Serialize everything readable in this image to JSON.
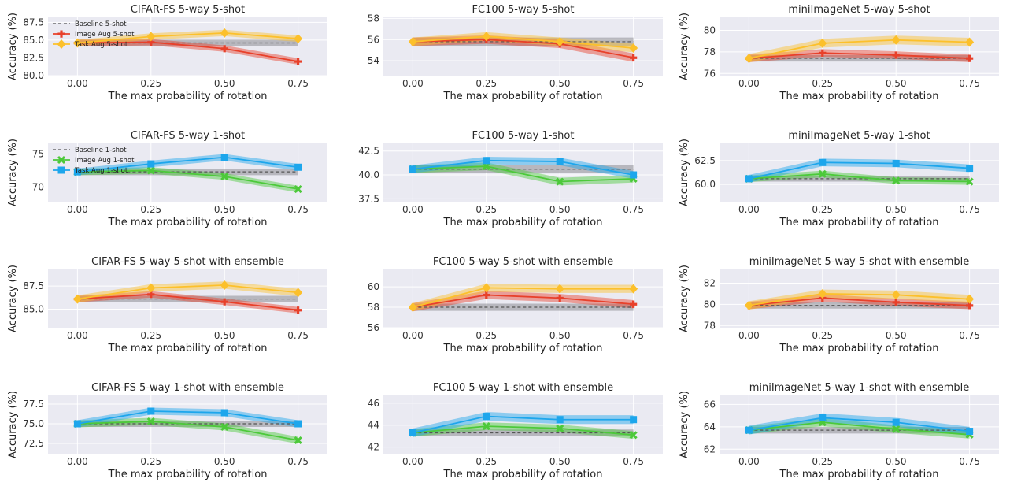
{
  "colors": {
    "background": "#eaeaf2",
    "grid": "#ffffff",
    "baseline": "#555555",
    "baseline_band": "#8c8c94",
    "image_aug": "#e8402a",
    "task_aug_5shot": "#fcc02b",
    "image_aug_1shot": "#4cc93a",
    "task_aug_1shot": "#1da6ec"
  },
  "chart_data": [
    {
      "type": "line",
      "title": "CIFAR-FS 5-way 5-shot",
      "shot": 5,
      "xlabel": "The max probability of rotation",
      "ylabel": "Accuracy (%)",
      "x": [
        0.0,
        0.25,
        0.5,
        0.75
      ],
      "xticks": [
        "0.00",
        "0.25",
        "0.50",
        "0.75"
      ],
      "ylim": [
        80.0,
        88.2
      ],
      "yticks": [
        80.0,
        82.5,
        85.0,
        87.5
      ],
      "ytick_labels": [
        "80.0",
        "82.5",
        "85.0",
        "87.5"
      ],
      "legend": {
        "location": "upper-left",
        "entries": [
          "Baseline 5-shot",
          "Image Aug 5-shot",
          "Task Aug 5-shot"
        ]
      },
      "series": [
        {
          "name": "Baseline 5-shot",
          "role": "baseline",
          "values": [
            84.6,
            84.6,
            84.6,
            84.6
          ],
          "band": 0.45
        },
        {
          "name": "Image Aug 5-shot",
          "role": "image",
          "values": [
            84.6,
            84.7,
            83.8,
            82.0
          ],
          "band": 0.45
        },
        {
          "name": "Task Aug 5-shot",
          "role": "task",
          "values": [
            84.6,
            85.5,
            86.0,
            85.2
          ],
          "band": 0.45
        }
      ]
    },
    {
      "type": "line",
      "title": "FC100 5-way 5-shot",
      "shot": 5,
      "xlabel": "The max probability of rotation",
      "ylabel": "",
      "x": [
        0.0,
        0.25,
        0.5,
        0.75
      ],
      "xticks": [
        "0.00",
        "0.25",
        "0.50",
        "0.75"
      ],
      "ylim": [
        52.6,
        58.1
      ],
      "yticks": [
        54,
        56,
        58
      ],
      "ytick_labels": [
        "54",
        "56",
        "58"
      ],
      "series": [
        {
          "name": "Baseline 5-shot",
          "role": "baseline",
          "values": [
            55.8,
            55.8,
            55.8,
            55.8
          ],
          "band": 0.4
        },
        {
          "name": "Image Aug 5-shot",
          "role": "image",
          "values": [
            55.8,
            56.0,
            55.6,
            54.3
          ],
          "band": 0.4
        },
        {
          "name": "Task Aug 5-shot",
          "role": "task",
          "values": [
            55.8,
            56.3,
            55.8,
            55.2
          ],
          "band": 0.4
        }
      ]
    },
    {
      "type": "line",
      "title": "miniImageNet 5-way 5-shot",
      "shot": 5,
      "xlabel": "The max probability of rotation",
      "ylabel": "Accuracy (%)",
      "x": [
        0.0,
        0.25,
        0.5,
        0.75
      ],
      "xticks": [
        "0.00",
        "0.25",
        "0.50",
        "0.75"
      ],
      "ylim": [
        75.8,
        81.2
      ],
      "yticks": [
        76,
        78,
        80
      ],
      "ytick_labels": [
        "76",
        "78",
        "80"
      ],
      "series": [
        {
          "name": "Baseline 5-shot",
          "role": "baseline",
          "values": [
            77.4,
            77.4,
            77.4,
            77.4
          ],
          "band": 0.3
        },
        {
          "name": "Image Aug 5-shot",
          "role": "image",
          "values": [
            77.4,
            77.9,
            77.7,
            77.4
          ],
          "band": 0.35
        },
        {
          "name": "Task Aug 5-shot",
          "role": "task",
          "values": [
            77.4,
            78.8,
            79.1,
            78.9
          ],
          "band": 0.4
        }
      ]
    },
    {
      "type": "line",
      "title": "CIFAR-FS 5-way 1-shot",
      "shot": 1,
      "xlabel": "The max probability of rotation",
      "ylabel": "Accuracy (%)",
      "x": [
        0.0,
        0.25,
        0.5,
        0.75
      ],
      "xticks": [
        "0.00",
        "0.25",
        "0.50",
        "0.75"
      ],
      "ylim": [
        67.8,
        76.6
      ],
      "yticks": [
        70,
        75
      ],
      "ytick_labels": [
        "70",
        "75"
      ],
      "legend": {
        "location": "upper-left",
        "entries": [
          "Baseline 1-shot",
          "Image Aug 1-shot",
          "Task Aug 1-shot"
        ]
      },
      "series": [
        {
          "name": "Baseline 1-shot",
          "role": "baseline",
          "values": [
            72.3,
            72.3,
            72.3,
            72.3
          ],
          "band": 0.5
        },
        {
          "name": "Image Aug 1-shot",
          "role": "image",
          "values": [
            72.3,
            72.5,
            71.6,
            69.7
          ],
          "band": 0.5
        },
        {
          "name": "Task Aug 1-shot",
          "role": "task",
          "values": [
            72.3,
            73.5,
            74.5,
            73.0
          ],
          "band": 0.5
        }
      ]
    },
    {
      "type": "line",
      "title": "FC100 5-way 1-shot",
      "shot": 1,
      "xlabel": "The max probability of rotation",
      "ylabel": "",
      "x": [
        0.0,
        0.25,
        0.5,
        0.75
      ],
      "xticks": [
        "0.00",
        "0.25",
        "0.50",
        "0.75"
      ],
      "ylim": [
        37.2,
        43.3
      ],
      "yticks": [
        37.5,
        40.0,
        42.5
      ],
      "ytick_labels": [
        "37.5",
        "40.0",
        "42.5"
      ],
      "series": [
        {
          "name": "Baseline 1-shot",
          "role": "baseline",
          "values": [
            40.6,
            40.6,
            40.6,
            40.6
          ],
          "band": 0.4
        },
        {
          "name": "Image Aug 1-shot",
          "role": "image",
          "values": [
            40.6,
            40.9,
            39.3,
            39.6
          ],
          "band": 0.4
        },
        {
          "name": "Task Aug 1-shot",
          "role": "task",
          "values": [
            40.6,
            41.5,
            41.4,
            40.0
          ],
          "band": 0.4
        }
      ]
    },
    {
      "type": "line",
      "title": "miniImageNet 5-way 1-shot",
      "shot": 1,
      "xlabel": "The max probability of rotation",
      "ylabel": "Accuracy (%)",
      "x": [
        0.0,
        0.25,
        0.5,
        0.75
      ],
      "xticks": [
        "0.00",
        "0.25",
        "0.50",
        "0.75"
      ],
      "ylim": [
        58.2,
        64.3
      ],
      "yticks": [
        60.0,
        62.5
      ],
      "ytick_labels": [
        "60.0",
        "62.5"
      ],
      "series": [
        {
          "name": "Baseline 1-shot",
          "role": "baseline",
          "values": [
            60.6,
            60.6,
            60.6,
            60.6
          ],
          "band": 0.3
        },
        {
          "name": "Image Aug 1-shot",
          "role": "image",
          "values": [
            60.6,
            61.1,
            60.4,
            60.3
          ],
          "band": 0.35
        },
        {
          "name": "Task Aug 1-shot",
          "role": "task",
          "values": [
            60.6,
            62.3,
            62.2,
            61.7
          ],
          "band": 0.4
        }
      ]
    },
    {
      "type": "line",
      "title": "CIFAR-FS 5-way 5-shot with ensemble",
      "shot": 5,
      "xlabel": "The max probability of rotation",
      "ylabel": "Accuracy (%)",
      "x": [
        0.0,
        0.25,
        0.5,
        0.75
      ],
      "xticks": [
        "0.00",
        "0.25",
        "0.50",
        "0.75"
      ],
      "ylim": [
        83.0,
        89.3
      ],
      "yticks": [
        85.0,
        87.5
      ],
      "ytick_labels": [
        "85.0",
        "87.5"
      ],
      "series": [
        {
          "name": "Baseline 5-shot",
          "role": "baseline",
          "values": [
            86.1,
            86.1,
            86.1,
            86.1
          ],
          "band": 0.35
        },
        {
          "name": "Image Aug 5-shot",
          "role": "image",
          "values": [
            86.1,
            86.6,
            85.8,
            84.9
          ],
          "band": 0.35
        },
        {
          "name": "Task Aug 5-shot",
          "role": "task",
          "values": [
            86.1,
            87.3,
            87.6,
            86.8
          ],
          "band": 0.4
        }
      ]
    },
    {
      "type": "line",
      "title": "FC100 5-way 5-shot with ensemble",
      "shot": 5,
      "xlabel": "The max probability of rotation",
      "ylabel": "",
      "x": [
        0.0,
        0.25,
        0.5,
        0.75
      ],
      "xticks": [
        "0.00",
        "0.25",
        "0.50",
        "0.75"
      ],
      "ylim": [
        56.0,
        61.7
      ],
      "yticks": [
        56,
        58,
        60
      ],
      "ytick_labels": [
        "56",
        "58",
        "60"
      ],
      "series": [
        {
          "name": "Baseline 5-shot",
          "role": "baseline",
          "values": [
            58.0,
            58.0,
            58.0,
            58.0
          ],
          "band": 0.35
        },
        {
          "name": "Image Aug 5-shot",
          "role": "image",
          "values": [
            58.0,
            59.2,
            58.9,
            58.3
          ],
          "band": 0.4
        },
        {
          "name": "Task Aug 5-shot",
          "role": "task",
          "values": [
            58.0,
            59.9,
            59.8,
            59.8
          ],
          "band": 0.4
        }
      ]
    },
    {
      "type": "line",
      "title": "miniImageNet 5-way 5-shot with ensemble",
      "shot": 5,
      "xlabel": "The max probability of rotation",
      "ylabel": "Accuracy (%)",
      "x": [
        0.0,
        0.25,
        0.5,
        0.75
      ],
      "xticks": [
        "0.00",
        "0.25",
        "0.50",
        "0.75"
      ],
      "ylim": [
        77.8,
        83.3
      ],
      "yticks": [
        78,
        80,
        82
      ],
      "ytick_labels": [
        "78",
        "80",
        "82"
      ],
      "series": [
        {
          "name": "Baseline 5-shot",
          "role": "baseline",
          "values": [
            79.9,
            79.9,
            79.9,
            79.9
          ],
          "band": 0.3
        },
        {
          "name": "Image Aug 5-shot",
          "role": "image",
          "values": [
            79.9,
            80.6,
            80.2,
            79.9
          ],
          "band": 0.35
        },
        {
          "name": "Task Aug 5-shot",
          "role": "task",
          "values": [
            79.9,
            81.0,
            80.9,
            80.5
          ],
          "band": 0.4
        }
      ]
    },
    {
      "type": "line",
      "title": "CIFAR-FS 5-way 1-shot with ensemble",
      "shot": 1,
      "xlabel": "The max probability of rotation",
      "ylabel": "Accuracy (%)",
      "x": [
        0.0,
        0.25,
        0.5,
        0.75
      ],
      "xticks": [
        "0.00",
        "0.25",
        "0.50",
        "0.75"
      ],
      "ylim": [
        71.2,
        78.6
      ],
      "yticks": [
        72.5,
        75.0,
        77.5
      ],
      "ytick_labels": [
        "72.5",
        "75.0",
        "77.5"
      ],
      "series": [
        {
          "name": "Baseline 1-shot",
          "role": "baseline",
          "values": [
            75.0,
            75.0,
            75.0,
            75.0
          ],
          "band": 0.4
        },
        {
          "name": "Image Aug 1-shot",
          "role": "image",
          "values": [
            75.0,
            75.3,
            74.6,
            72.9
          ],
          "band": 0.45
        },
        {
          "name": "Task Aug 1-shot",
          "role": "task",
          "values": [
            75.0,
            76.6,
            76.4,
            75.0
          ],
          "band": 0.45
        }
      ]
    },
    {
      "type": "line",
      "title": "FC100 5-way 1-shot with ensemble",
      "shot": 1,
      "xlabel": "The max probability of rotation",
      "ylabel": "",
      "x": [
        0.0,
        0.25,
        0.5,
        0.75
      ],
      "xticks": [
        "0.00",
        "0.25",
        "0.50",
        "0.75"
      ],
      "ylim": [
        41.4,
        46.7
      ],
      "yticks": [
        42,
        44,
        46
      ],
      "ytick_labels": [
        "42",
        "44",
        "46"
      ],
      "series": [
        {
          "name": "Baseline 1-shot",
          "role": "baseline",
          "values": [
            43.3,
            43.3,
            43.3,
            43.3
          ],
          "band": 0.3
        },
        {
          "name": "Image Aug 1-shot",
          "role": "image",
          "values": [
            43.3,
            43.9,
            43.7,
            43.1
          ],
          "band": 0.35
        },
        {
          "name": "Task Aug 1-shot",
          "role": "task",
          "values": [
            43.3,
            44.8,
            44.5,
            44.5
          ],
          "band": 0.4
        }
      ]
    },
    {
      "type": "line",
      "title": "miniImageNet 5-way 1-shot with ensemble",
      "shot": 1,
      "xlabel": "The max probability of rotation",
      "ylabel": "Accuracy (%)",
      "x": [
        0.0,
        0.25,
        0.5,
        0.75
      ],
      "xticks": [
        "0.00",
        "0.25",
        "0.50",
        "0.75"
      ],
      "ylim": [
        61.6,
        66.8
      ],
      "yticks": [
        62,
        64,
        66
      ],
      "ytick_labels": [
        "62",
        "64",
        "66"
      ],
      "series": [
        {
          "name": "Baseline 1-shot",
          "role": "baseline",
          "values": [
            63.7,
            63.7,
            63.7,
            63.7
          ],
          "band": 0.3
        },
        {
          "name": "Image Aug 1-shot",
          "role": "image",
          "values": [
            63.7,
            64.4,
            63.8,
            63.3
          ],
          "band": 0.35
        },
        {
          "name": "Task Aug 1-shot",
          "role": "task",
          "values": [
            63.7,
            64.8,
            64.4,
            63.6
          ],
          "band": 0.4
        }
      ]
    }
  ]
}
